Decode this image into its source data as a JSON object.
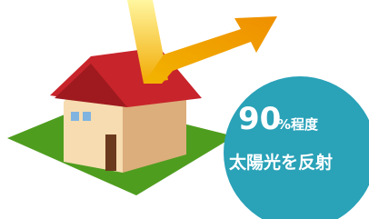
{
  "badge": {
    "percent": "90",
    "suffix": "%程度",
    "caption": "太陽光を反射"
  }
}
